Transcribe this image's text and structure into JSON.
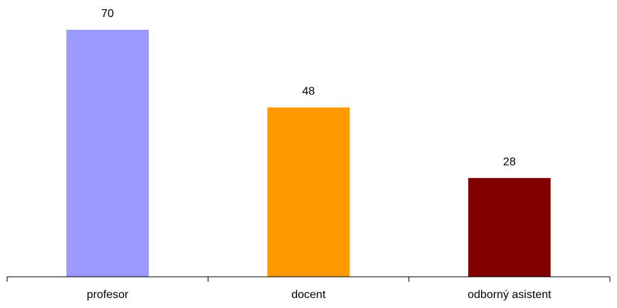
{
  "chart_data": {
    "type": "bar",
    "title": "",
    "xlabel": "",
    "ylabel": "",
    "categories": [
      "profesor",
      "docent",
      "odborný asistent"
    ],
    "values": [
      70,
      48,
      28
    ],
    "data_labels": [
      "70",
      "48",
      "28"
    ],
    "colors": [
      "#9999ff",
      "#ff9900",
      "#800000"
    ],
    "ylim": [
      0,
      70
    ],
    "grid": false,
    "legend": "none"
  }
}
